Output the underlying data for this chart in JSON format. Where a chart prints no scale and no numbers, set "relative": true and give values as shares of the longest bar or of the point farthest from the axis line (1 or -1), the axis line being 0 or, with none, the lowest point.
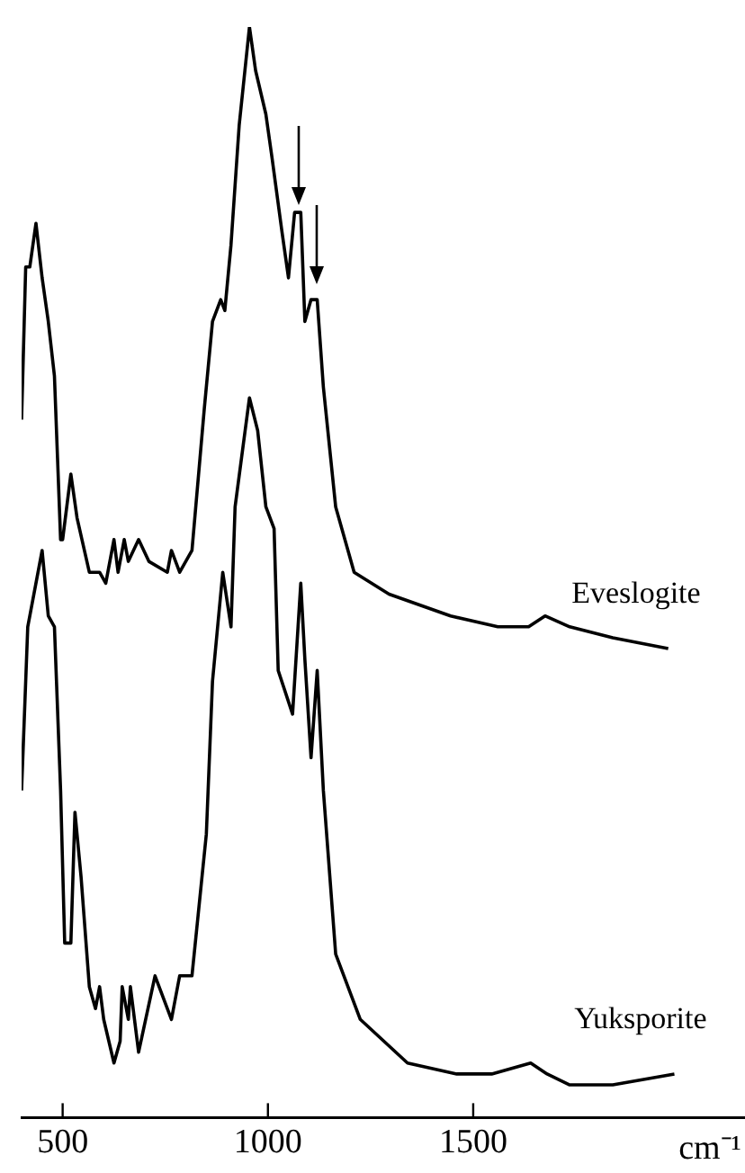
{
  "chart_data": {
    "type": "line",
    "relative": true,
    "xlabel": "cm⁻¹",
    "xlim": [
      400,
      2162
    ],
    "xticks": [
      500,
      1000,
      1500
    ],
    "grid": false,
    "legend": false,
    "marker": "none",
    "line_style": "solid",
    "series": [
      {
        "name": "Eveslogite",
        "color": "#000000",
        "x": [
          400,
          410,
          420,
          435,
          450,
          465,
          480,
          495,
          500,
          520,
          535,
          565,
          590,
          605,
          625,
          635,
          650,
          660,
          685,
          710,
          755,
          765,
          785,
          815,
          845,
          865,
          885,
          895,
          910,
          930,
          955,
          970,
          995,
          1010,
          1035,
          1050,
          1065,
          1080,
          1090,
          1105,
          1120,
          1135,
          1165,
          1210,
          1295,
          1445,
          1560,
          1635,
          1675,
          1735,
          1840,
          1975
        ],
        "values": [
          0.64,
          0.78,
          0.78,
          0.82,
          0.77,
          0.73,
          0.68,
          0.53,
          0.53,
          0.59,
          0.55,
          0.5,
          0.5,
          0.49,
          0.53,
          0.5,
          0.53,
          0.51,
          0.53,
          0.51,
          0.5,
          0.52,
          0.5,
          0.52,
          0.65,
          0.73,
          0.75,
          0.74,
          0.8,
          0.91,
          1,
          0.96,
          0.92,
          0.88,
          0.81,
          0.77,
          0.83,
          0.83,
          0.73,
          0.75,
          0.75,
          0.67,
          0.56,
          0.5,
          0.48,
          0.46,
          0.45,
          0.45,
          0.46,
          0.45,
          0.44,
          0.43
        ]
      },
      {
        "name": "Yuksporite",
        "color": "#000000",
        "x": [
          400,
          415,
          450,
          465,
          480,
          495,
          505,
          520,
          530,
          545,
          565,
          580,
          590,
          600,
          625,
          640,
          645,
          660,
          665,
          685,
          725,
          765,
          785,
          815,
          850,
          865,
          890,
          910,
          920,
          955,
          975,
          995,
          1015,
          1025,
          1060,
          1080,
          1090,
          1105,
          1120,
          1135,
          1165,
          1225,
          1340,
          1460,
          1545,
          1640,
          1680,
          1735,
          1840,
          1990
        ],
        "values": [
          0.3,
          0.45,
          0.52,
          0.46,
          0.45,
          0.3,
          0.16,
          0.16,
          0.28,
          0.22,
          0.12,
          0.1,
          0.12,
          0.09,
          0.05,
          0.07,
          0.12,
          0.09,
          0.12,
          0.06,
          0.13,
          0.09,
          0.13,
          0.13,
          0.26,
          0.4,
          0.5,
          0.45,
          0.56,
          0.66,
          0.63,
          0.56,
          0.54,
          0.41,
          0.37,
          0.49,
          0.42,
          0.33,
          0.41,
          0.3,
          0.15,
          0.09,
          0.05,
          0.04,
          0.04,
          0.05,
          0.04,
          0.03,
          0.03,
          0.04
        ]
      }
    ]
  }
}
